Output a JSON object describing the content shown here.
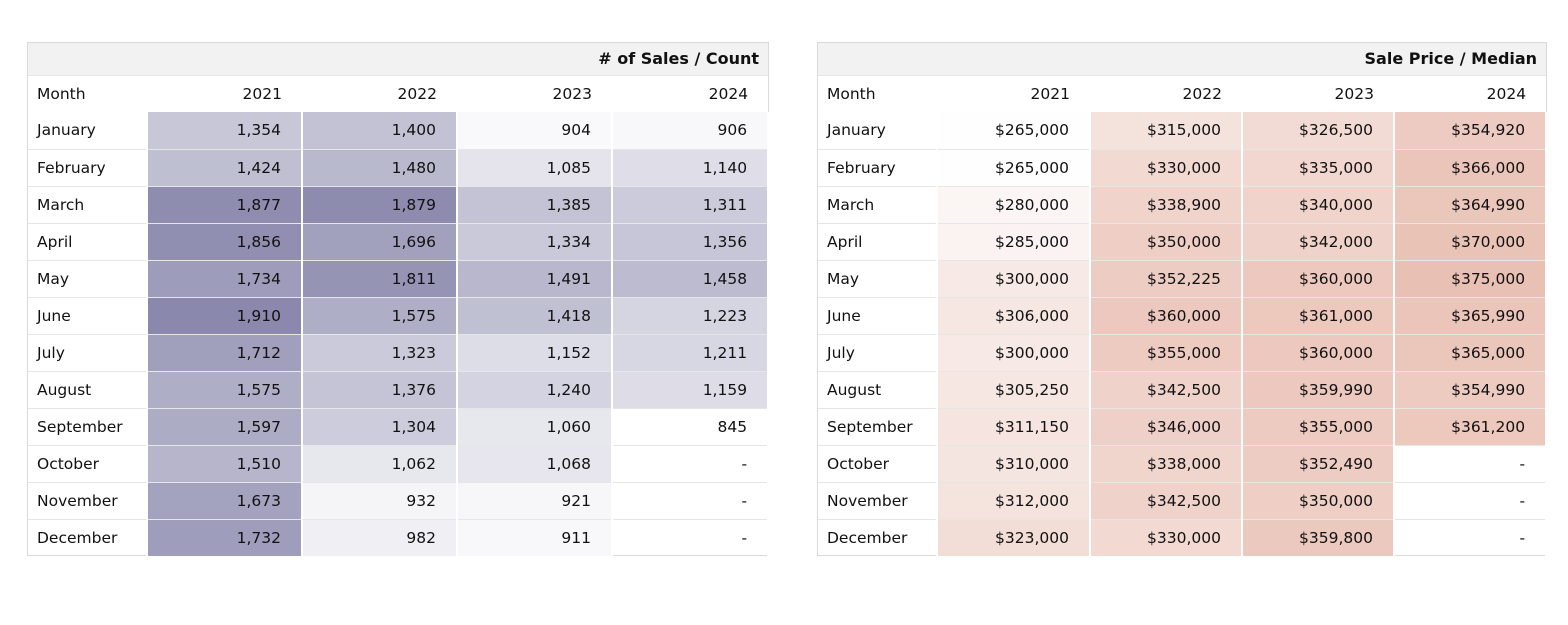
{
  "chart_data": [
    {
      "type": "table",
      "title": "# of Sales / Count",
      "month_header": "Month",
      "years": [
        "2021",
        "2022",
        "2023",
        "2024"
      ],
      "months": [
        "January",
        "February",
        "March",
        "April",
        "May",
        "June",
        "July",
        "August",
        "September",
        "October",
        "November",
        "December"
      ],
      "values": [
        [
          1354,
          1424,
          1877,
          1856,
          1734,
          1910,
          1712,
          1575,
          1597,
          1510,
          1673,
          1732
        ],
        [
          1400,
          1480,
          1879,
          1696,
          1811,
          1575,
          1323,
          1376,
          1304,
          1062,
          932,
          982
        ],
        [
          904,
          1085,
          1385,
          1334,
          1491,
          1418,
          1152,
          1240,
          1060,
          1068,
          921,
          911
        ],
        [
          906,
          1140,
          1311,
          1356,
          1458,
          1223,
          1211,
          1159,
          845,
          null,
          null,
          null
        ]
      ],
      "display": [
        [
          "1,354",
          "1,424",
          "1,877",
          "1,856",
          "1,734",
          "1,910",
          "1,712",
          "1,575",
          "1,597",
          "1,510",
          "1,673",
          "1,732"
        ],
        [
          "1,400",
          "1,480",
          "1,879",
          "1,696",
          "1,811",
          "1,575",
          "1,323",
          "1,376",
          "1,304",
          "1,062",
          "932",
          "982"
        ],
        [
          "904",
          "1,085",
          "1,385",
          "1,334",
          "1,491",
          "1,418",
          "1,152",
          "1,240",
          "1,060",
          "1,068",
          "921",
          "911"
        ],
        [
          "906",
          "1,140",
          "1,311",
          "1,356",
          "1,458",
          "1,223",
          "1,211",
          "1,159",
          "845",
          "-",
          "-",
          "-"
        ]
      ],
      "color_scale": {
        "low": "#ffffff",
        "high": "#8a89ad",
        "min": 845,
        "max": 1910
      }
    },
    {
      "type": "table",
      "title": "Sale Price / Median",
      "month_header": "Month",
      "years": [
        "2021",
        "2022",
        "2023",
        "2024"
      ],
      "months": [
        "January",
        "February",
        "March",
        "April",
        "May",
        "June",
        "July",
        "August",
        "September",
        "October",
        "November",
        "December"
      ],
      "values": [
        [
          265000,
          265000,
          280000,
          285000,
          300000,
          306000,
          300000,
          305250,
          311150,
          310000,
          312000,
          323000
        ],
        [
          315000,
          330000,
          338900,
          350000,
          352225,
          360000,
          355000,
          342500,
          346000,
          338000,
          342500,
          330000
        ],
        [
          326500,
          335000,
          340000,
          342000,
          360000,
          361000,
          360000,
          359990,
          355000,
          352490,
          350000,
          359800
        ],
        [
          354920,
          366000,
          364990,
          370000,
          375000,
          365990,
          365000,
          354990,
          361200,
          null,
          null,
          null
        ]
      ],
      "display": [
        [
          "$265,000",
          "$265,000",
          "$280,000",
          "$285,000",
          "$300,000",
          "$306,000",
          "$300,000",
          "$305,250",
          "$311,150",
          "$310,000",
          "$312,000",
          "$323,000"
        ],
        [
          "$315,000",
          "$330,000",
          "$338,900",
          "$350,000",
          "$352,225",
          "$360,000",
          "$355,000",
          "$342,500",
          "$346,000",
          "$338,000",
          "$342,500",
          "$330,000"
        ],
        [
          "$326,500",
          "$335,000",
          "$340,000",
          "$342,000",
          "$360,000",
          "$361,000",
          "$360,000",
          "$359,990",
          "$355,000",
          "$352,490",
          "$350,000",
          "$359,800"
        ],
        [
          "$354,920",
          "$366,000",
          "$364,990",
          "$370,000",
          "$375,000",
          "$365,990",
          "$365,000",
          "$354,990",
          "$361,200",
          "-",
          "-",
          "-"
        ]
      ],
      "color_scale": {
        "low": "#fefefe",
        "high": "#e9c0b4",
        "min": 265000,
        "max": 375000
      }
    }
  ]
}
